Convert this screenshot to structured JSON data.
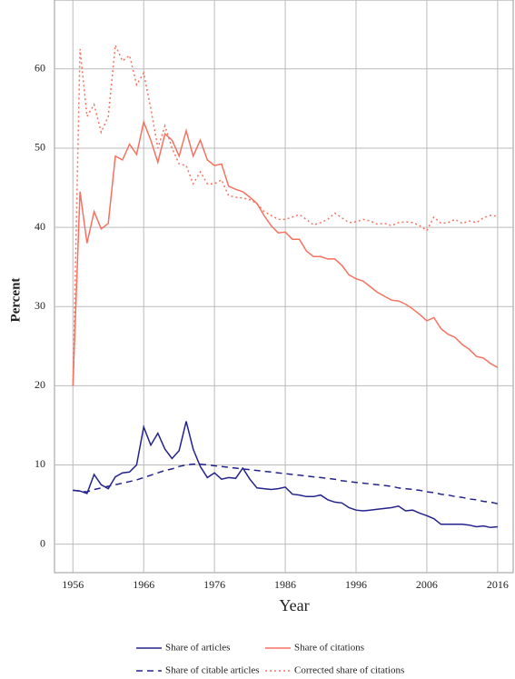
{
  "chart_data": {
    "type": "line",
    "xlabel": "Year",
    "ylabel": "Percent",
    "x": [
      1956,
      1957,
      1958,
      1959,
      1960,
      1961,
      1962,
      1963,
      1964,
      1965,
      1966,
      1967,
      1968,
      1969,
      1970,
      1971,
      1972,
      1973,
      1974,
      1975,
      1976,
      1977,
      1978,
      1979,
      1980,
      1981,
      1982,
      1983,
      1984,
      1985,
      1986,
      1987,
      1988,
      1989,
      1990,
      1991,
      1992,
      1993,
      1994,
      1995,
      1996,
      1997,
      1998,
      1999,
      2000,
      2001,
      2002,
      2003,
      2004,
      2005,
      2006,
      2007,
      2008,
      2009,
      2010,
      2011,
      2012,
      2013,
      2014,
      2015,
      2016
    ],
    "series": [
      {
        "name": "Share of articles",
        "color": "#23238c",
        "dash": "solid",
        "values": [
          6.8,
          6.7,
          6.4,
          8.8,
          7.5,
          7.0,
          8.5,
          9.0,
          9.1,
          10.0,
          14.8,
          12.5,
          14.0,
          12.0,
          10.8,
          11.8,
          15.5,
          12.0,
          9.8,
          8.4,
          9.0,
          8.2,
          8.4,
          8.3,
          9.6,
          8.2,
          7.1,
          7.0,
          6.9,
          7.0,
          7.2,
          6.3,
          6.2,
          6.0,
          6.0,
          6.2,
          5.6,
          5.3,
          5.2,
          4.6,
          4.3,
          4.2,
          4.3,
          4.4,
          4.5,
          4.6,
          4.8,
          4.2,
          4.3,
          3.9,
          3.6,
          3.2,
          2.5,
          2.5,
          2.5,
          2.5,
          2.4,
          2.2,
          2.3,
          2.1,
          2.2
        ]
      },
      {
        "name": "Share of citations",
        "color": "#f77160",
        "dash": "solid",
        "values": [
          20,
          44.5,
          38,
          42,
          39.8,
          40.5,
          49,
          48.5,
          50.5,
          49.2,
          53.3,
          51,
          48.2,
          51.8,
          51,
          49,
          52.2,
          49,
          51,
          48.5,
          47.8,
          48,
          45.2,
          44.8,
          44.5,
          43.8,
          43,
          41.5,
          40.2,
          39.3,
          39.4,
          38.5,
          38.5,
          37,
          36.3,
          36.3,
          36,
          36,
          35.2,
          34,
          33.5,
          33.2,
          32.5,
          31.8,
          31.3,
          30.8,
          30.7,
          30.3,
          29.7,
          29,
          28.2,
          28.6,
          27.2,
          26.5,
          26.1,
          25.2,
          24.6,
          23.7,
          23.5,
          22.8,
          22.3
        ]
      },
      {
        "name": "Share of citable articles",
        "color": "#23238c",
        "dash": "dashed",
        "values": [
          6.8,
          6.7,
          6.6,
          6.9,
          7.1,
          7.3,
          7.5,
          7.7,
          7.9,
          8.1,
          8.4,
          8.7,
          9.0,
          9.3,
          9.5,
          9.8,
          10.0,
          10.1,
          10.1,
          10.0,
          9.9,
          9.8,
          9.7,
          9.6,
          9.5,
          9.4,
          9.3,
          9.2,
          9.1,
          9.0,
          8.9,
          8.8,
          8.7,
          8.6,
          8.5,
          8.4,
          8.3,
          8.2,
          8.0,
          7.9,
          7.8,
          7.7,
          7.6,
          7.5,
          7.4,
          7.3,
          7.1,
          7.0,
          6.9,
          6.8,
          6.6,
          6.5,
          6.3,
          6.2,
          6.0,
          5.9,
          5.7,
          5.6,
          5.4,
          5.3,
          5.1
        ]
      },
      {
        "name": "Corrected share of citations",
        "color": "#f77160",
        "dash": "dotted",
        "values": [
          20,
          62.5,
          54,
          55.5,
          52,
          54,
          63,
          61,
          61.7,
          58,
          59.5,
          55,
          50,
          52.8,
          50,
          48,
          47.8,
          45.5,
          47,
          45.5,
          45.5,
          46,
          44,
          43.8,
          43.7,
          43.5,
          43,
          42,
          41.5,
          41,
          41,
          41.3,
          41.6,
          41,
          40.3,
          40.6,
          41,
          41.8,
          41.2,
          40.6,
          40.7,
          41,
          40.8,
          40.4,
          40.5,
          40.2,
          40.6,
          40.7,
          40.6,
          40.2,
          39.6,
          41.3,
          40.5,
          40.6,
          41,
          40.5,
          40.8,
          40.6,
          41.2,
          41.5,
          41.4
        ]
      }
    ],
    "xlim": [
      1953.4,
      2018.2
    ],
    "xticks": [
      1956,
      1966,
      1976,
      1986,
      1996,
      2006,
      2016
    ],
    "ylim": [
      -3.6,
      68.7
    ],
    "yticks": [
      0,
      10,
      20,
      30,
      40,
      50,
      60
    ],
    "grid": true,
    "legend": "bottom"
  }
}
